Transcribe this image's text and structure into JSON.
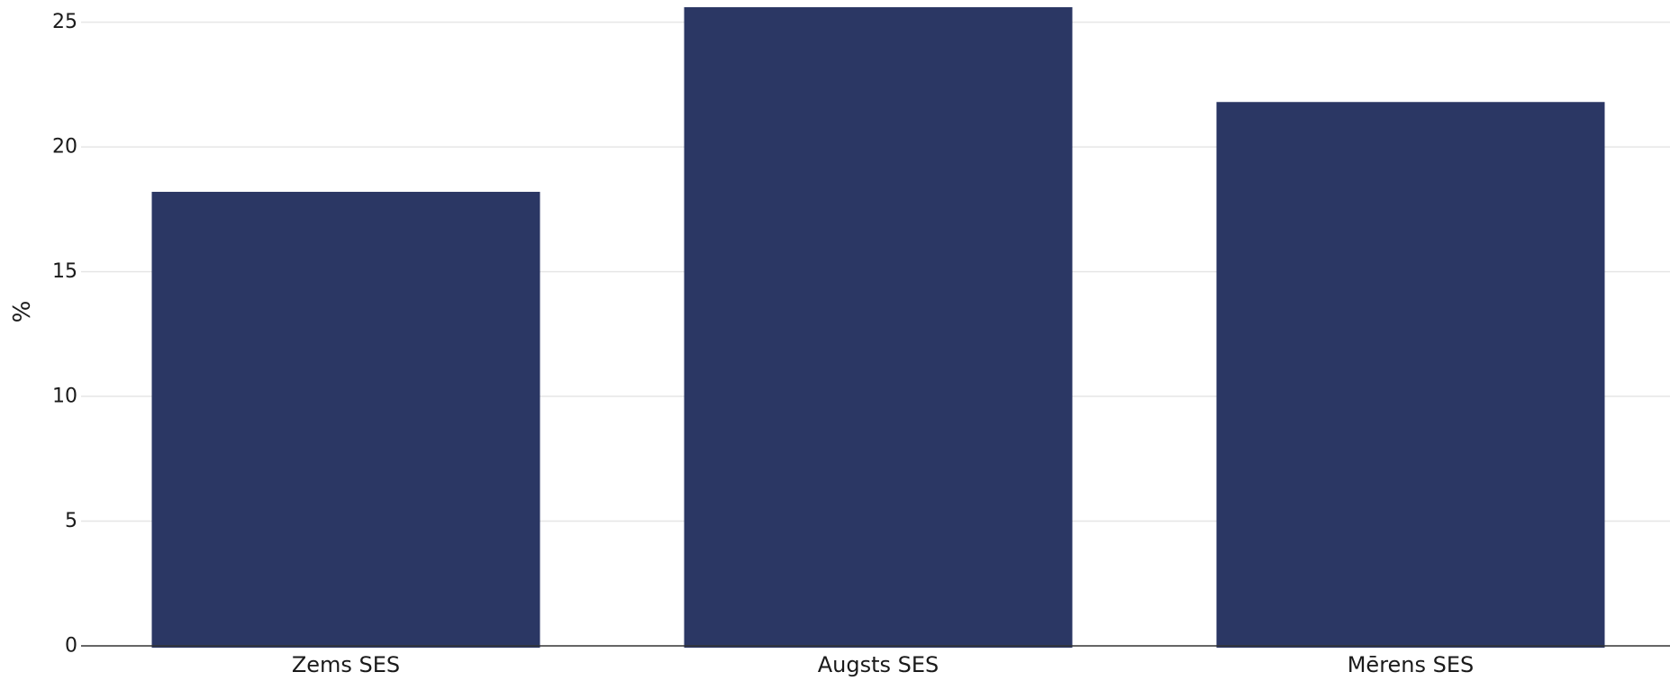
{
  "chart_data": {
    "type": "bar",
    "categories": [
      "Zems SES",
      "Augsts SES",
      "Mērens SES"
    ],
    "values": [
      18.2,
      25.6,
      21.8
    ],
    "title": "",
    "xlabel": "",
    "ylabel": "%",
    "ylim": [
      0,
      25.6
    ],
    "yticks": [
      0,
      5,
      10,
      15,
      20,
      25
    ],
    "ytick_labels": [
      "0",
      "5",
      "10",
      "15",
      "20",
      "25"
    ],
    "grid": true,
    "legend": "none",
    "bar_color": "#2b3764",
    "grid_color": "#e6e6e6",
    "axis_color": "#333333"
  }
}
